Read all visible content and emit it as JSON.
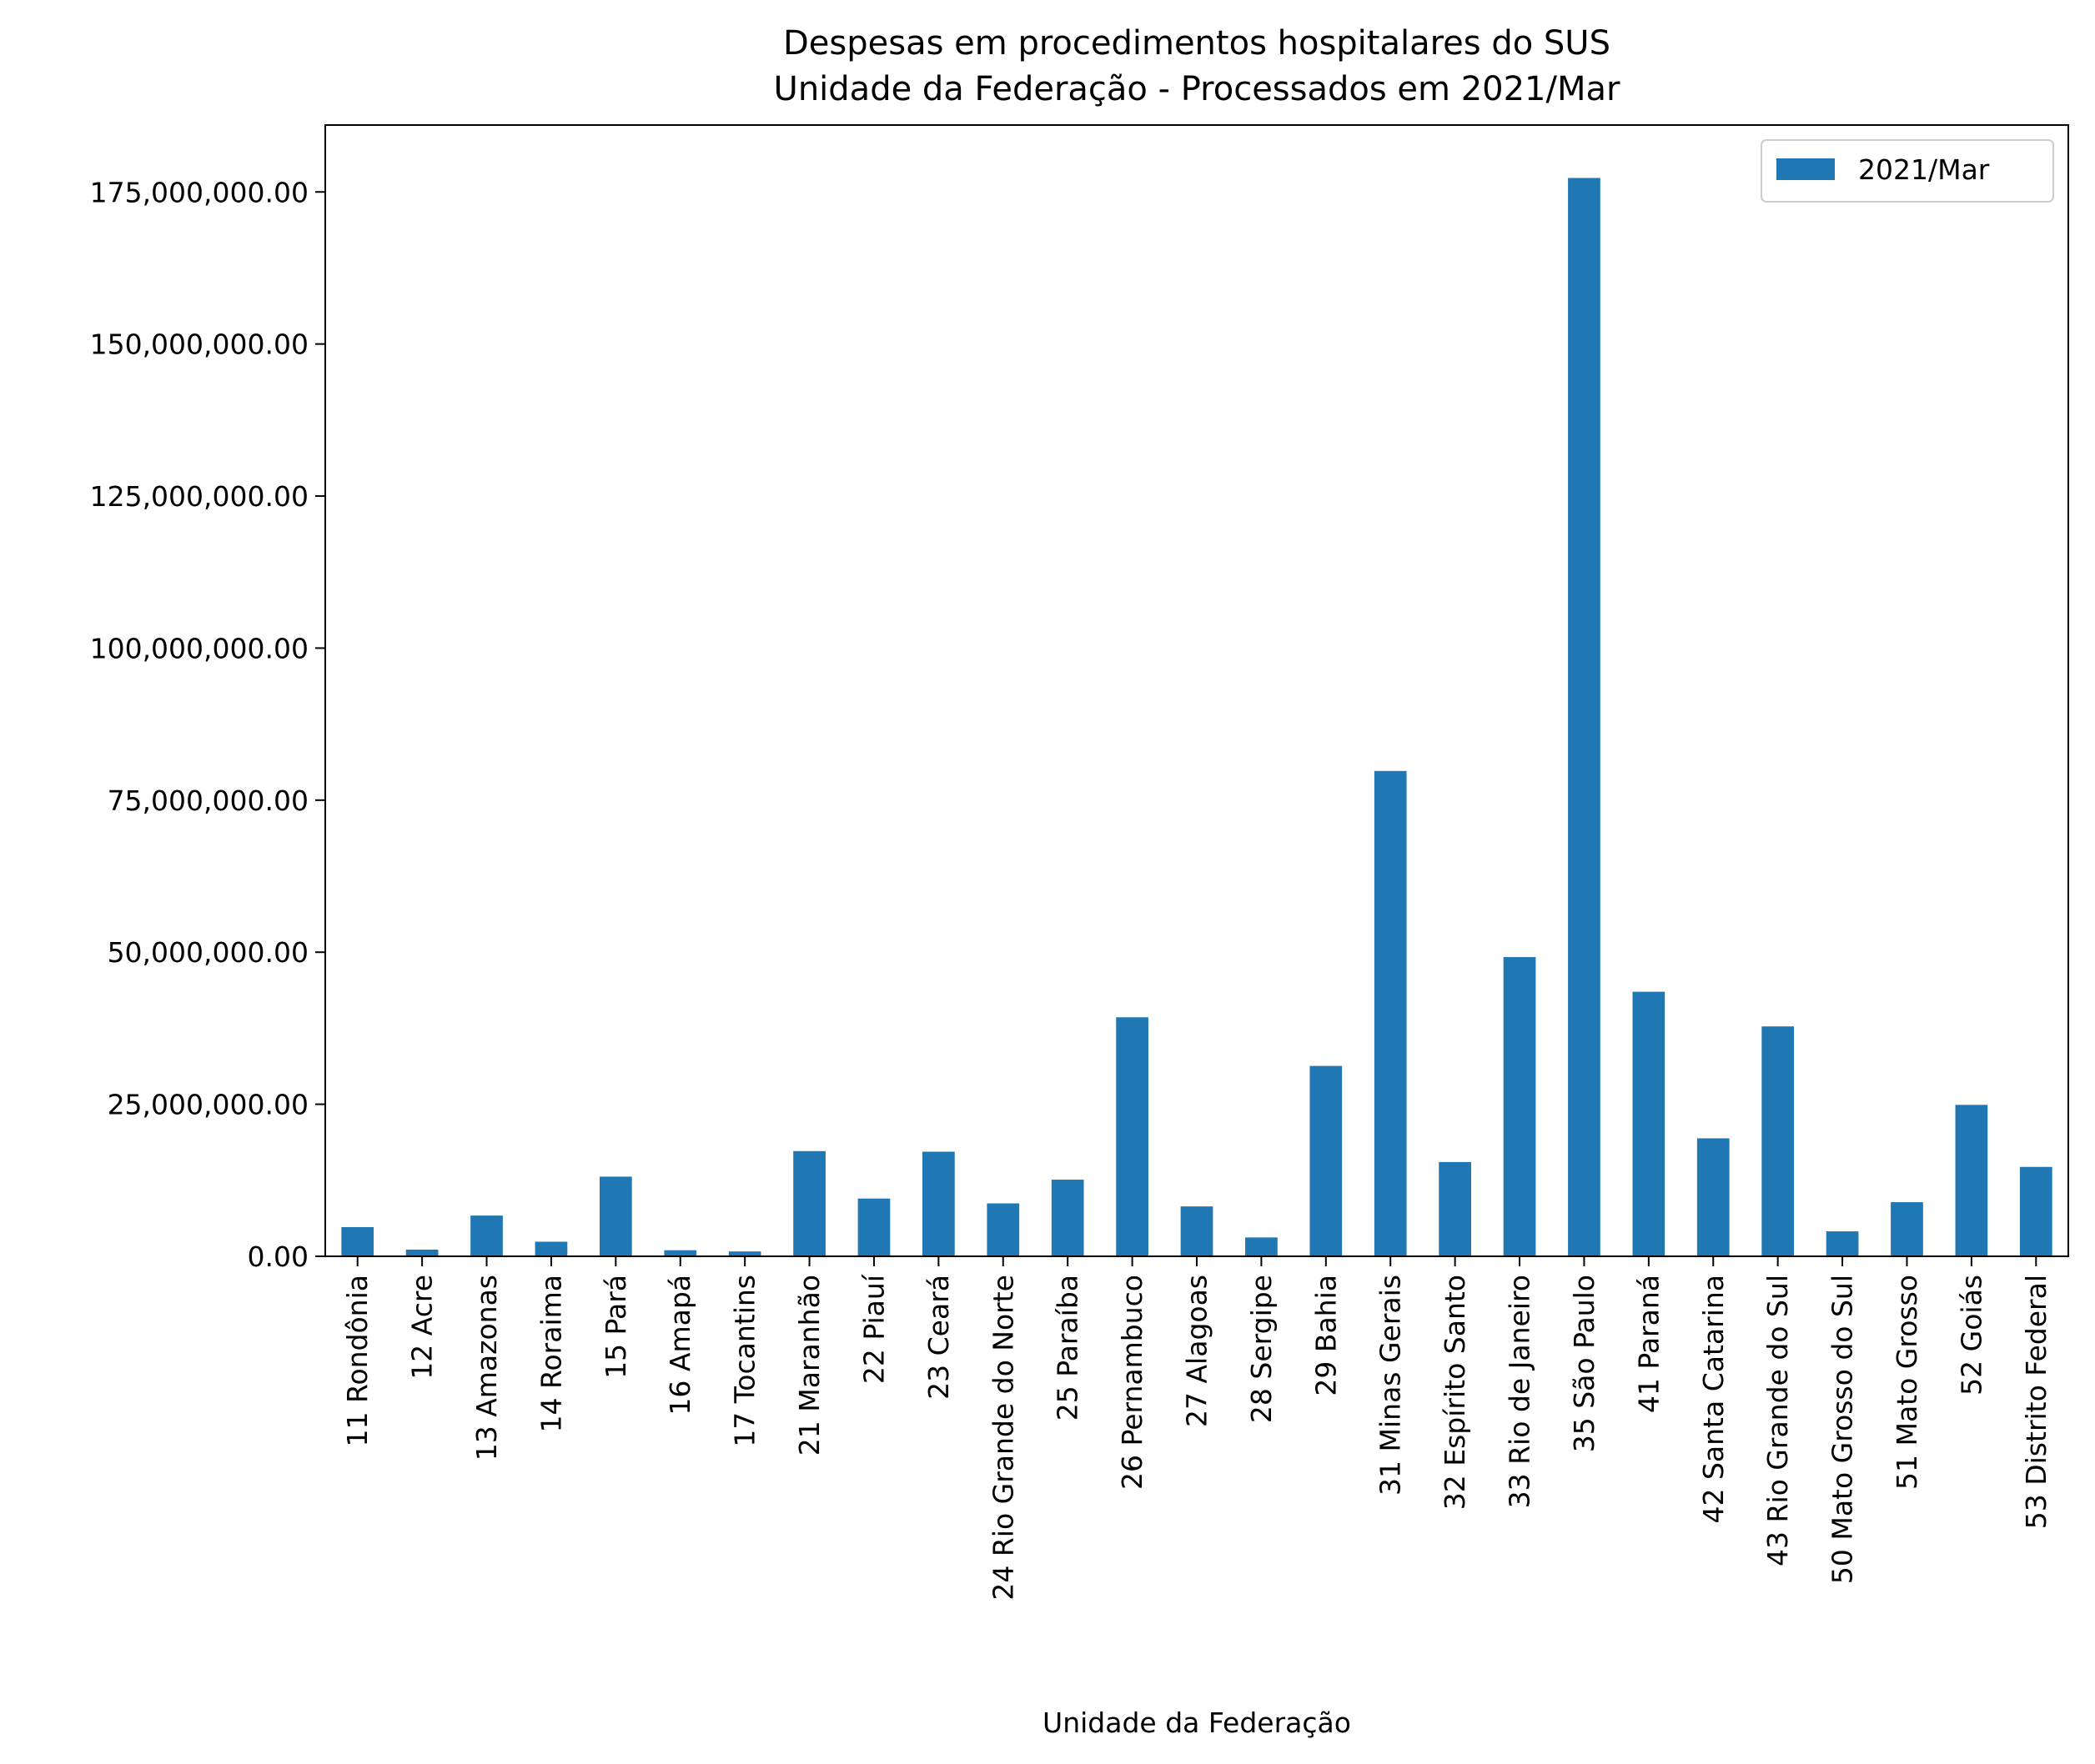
{
  "chart_data": {
    "type": "bar",
    "title": "Despesas em procedimentos hospitalares do SUS",
    "subtitle": "Unidade da Federação - Processados em 2021/Mar",
    "xlabel": "Unidade da Federação",
    "ylabel": "",
    "ylim": [
      0,
      186000000
    ],
    "yticks": [
      0,
      25000000,
      50000000,
      75000000,
      100000000,
      125000000,
      150000000,
      175000000
    ],
    "ytick_labels": [
      "0.00",
      "25,000,000.00",
      "50,000,000.00",
      "75,000,000.00",
      "100,000,000.00",
      "125,000,000.00",
      "150,000,000.00",
      "175,000,000.00"
    ],
    "grid": false,
    "legend": {
      "placement": "top-right",
      "entries": [
        "2021/Mar"
      ]
    },
    "categories": [
      "11 Rondônia",
      "12 Acre",
      "13 Amazonas",
      "14 Roraima",
      "15 Pará",
      "16 Amapá",
      "17 Tocantins",
      "21 Maranhão",
      "22 Piauí",
      "23 Ceará",
      "24 Rio Grande do Norte",
      "25 Paraíba",
      "26 Pernambuco",
      "27 Alagoas",
      "28 Sergipe",
      "29 Bahia",
      "31 Minas Gerais",
      "32 Espírito Santo",
      "33 Rio de Janeiro",
      "35 São Paulo",
      "41 Paraná",
      "42 Santa Catarina",
      "43 Rio Grande do Sul",
      "50 Mato Grosso do Sul",
      "51 Mato Grosso",
      "52 Goiás",
      "53 Distrito Federal"
    ],
    "series": [
      {
        "name": "2021/Mar",
        "color": "#1f77b4",
        "values": [
          4800000,
          1100000,
          6700000,
          2400000,
          13100000,
          1000000,
          800000,
          17300000,
          9500000,
          17200000,
          8700000,
          12600000,
          39300000,
          8200000,
          3100000,
          31300000,
          79800000,
          15500000,
          49200000,
          177300000,
          43500000,
          19400000,
          37800000,
          4100000,
          8900000,
          24900000,
          14700000
        ]
      }
    ]
  }
}
